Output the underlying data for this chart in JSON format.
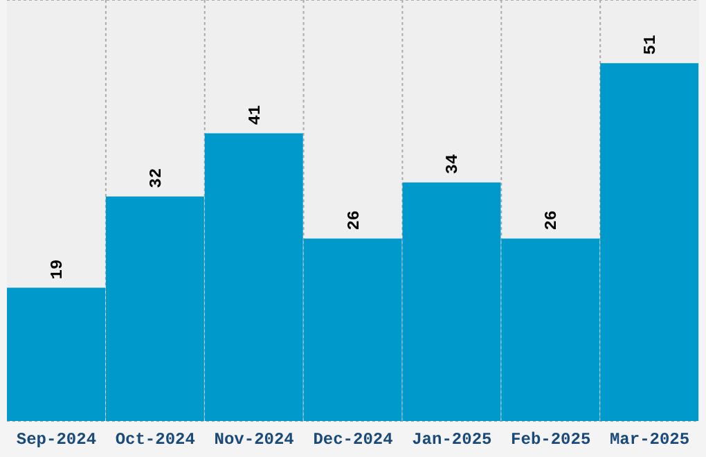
{
  "chart_data": {
    "type": "bar",
    "categories": [
      "Sep-2024",
      "Oct-2024",
      "Nov-2024",
      "Dec-2024",
      "Jan-2025",
      "Feb-2025",
      "Mar-2025"
    ],
    "values": [
      19,
      32,
      41,
      26,
      34,
      26,
      51
    ],
    "color": "#0099cc",
    "tick_labels": "x",
    "grid": true,
    "data_labels": true
  }
}
